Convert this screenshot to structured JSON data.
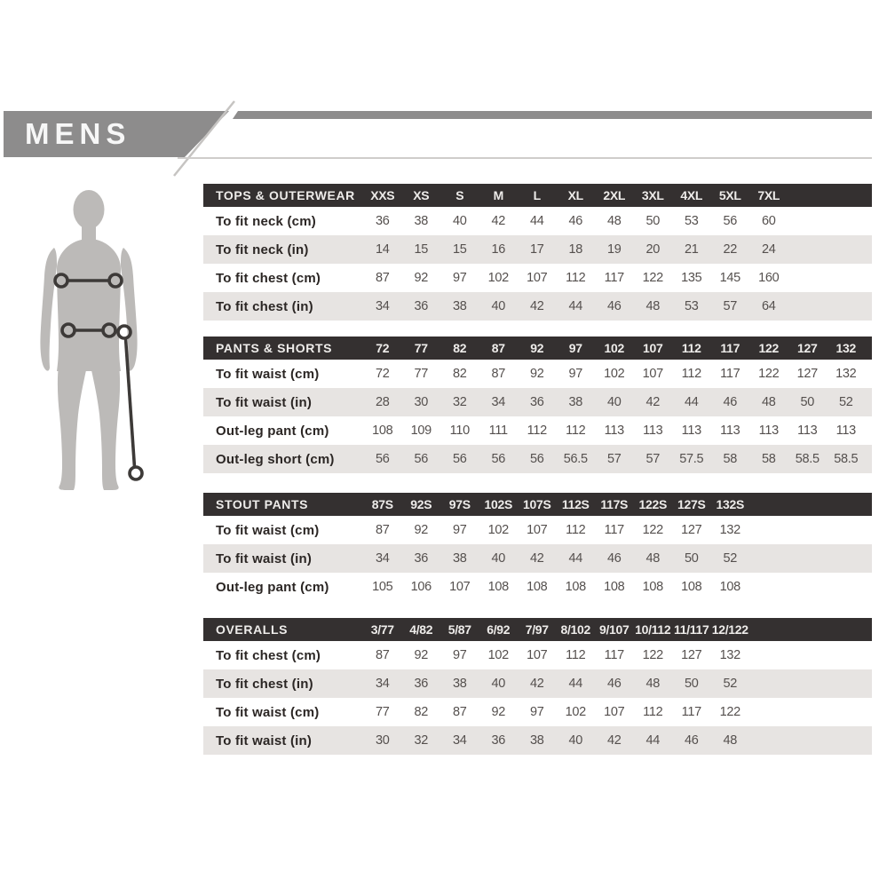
{
  "header": {
    "title": "MENS"
  },
  "figure": {
    "icon": "male-body-silhouette",
    "markers": [
      "chest-girth-marker",
      "waist-girth-marker",
      "outleg-length-marker"
    ]
  },
  "colors": {
    "banner_bg": "#8d8c8c",
    "banner_text": "#f7f7f7",
    "table_header_bg": "#343030",
    "table_header_text": "#eeecea",
    "row_band_bg": "#e7e4e2",
    "row_label_text": "#2b2624",
    "value_text": "#55504e",
    "silhouette_fill": "#bcbab8",
    "marker_stroke": "#3d3a38",
    "hairline": "#cfcdcb"
  },
  "tables": [
    {
      "id": "tops-outerwear",
      "title": "TOPS & OUTERWEAR",
      "columns": [
        "XXS",
        "XS",
        "S",
        "M",
        "L",
        "XL",
        "2XL",
        "3XL",
        "4XL",
        "5XL",
        "7XL"
      ],
      "rows": [
        {
          "label": "To fit neck (cm)",
          "values": [
            "36",
            "38",
            "40",
            "42",
            "44",
            "46",
            "48",
            "50",
            "53",
            "56",
            "60"
          ]
        },
        {
          "label": "To fit neck (in)",
          "values": [
            "14",
            "15",
            "15",
            "16",
            "17",
            "18",
            "19",
            "20",
            "21",
            "22",
            "24"
          ]
        },
        {
          "label": "To fit chest (cm)",
          "values": [
            "87",
            "92",
            "97",
            "102",
            "107",
            "112",
            "117",
            "122",
            "135",
            "145",
            "160"
          ]
        },
        {
          "label": "To fit chest (in)",
          "values": [
            "34",
            "36",
            "38",
            "40",
            "42",
            "44",
            "46",
            "48",
            "53",
            "57",
            "64"
          ]
        }
      ]
    },
    {
      "id": "pants-shorts",
      "title": "PANTS & SHORTS",
      "columns": [
        "72",
        "77",
        "82",
        "87",
        "92",
        "97",
        "102",
        "107",
        "112",
        "117",
        "122",
        "127",
        "132"
      ],
      "rows": [
        {
          "label": "To fit waist (cm)",
          "values": [
            "72",
            "77",
            "82",
            "87",
            "92",
            "97",
            "102",
            "107",
            "112",
            "117",
            "122",
            "127",
            "132"
          ]
        },
        {
          "label": "To fit waist (in)",
          "values": [
            "28",
            "30",
            "32",
            "34",
            "36",
            "38",
            "40",
            "42",
            "44",
            "46",
            "48",
            "50",
            "52"
          ]
        },
        {
          "label": "Out-leg pant (cm)",
          "values": [
            "108",
            "109",
            "110",
            "111",
            "112",
            "112",
            "113",
            "113",
            "113",
            "113",
            "113",
            "113",
            "113"
          ]
        },
        {
          "label": "Out-leg short (cm)",
          "values": [
            "56",
            "56",
            "56",
            "56",
            "56",
            "56.5",
            "57",
            "57",
            "57.5",
            "58",
            "58",
            "58.5",
            "58.5"
          ]
        }
      ]
    },
    {
      "id": "stout-pants",
      "title": "STOUT PANTS",
      "columns": [
        "87S",
        "92S",
        "97S",
        "102S",
        "107S",
        "112S",
        "117S",
        "122S",
        "127S",
        "132S"
      ],
      "rows": [
        {
          "label": "To fit waist (cm)",
          "values": [
            "87",
            "92",
            "97",
            "102",
            "107",
            "112",
            "117",
            "122",
            "127",
            "132"
          ]
        },
        {
          "label": "To fit waist (in)",
          "values": [
            "34",
            "36",
            "38",
            "40",
            "42",
            "44",
            "46",
            "48",
            "50",
            "52"
          ]
        },
        {
          "label": "Out-leg pant (cm)",
          "values": [
            "105",
            "106",
            "107",
            "108",
            "108",
            "108",
            "108",
            "108",
            "108",
            "108"
          ]
        }
      ]
    },
    {
      "id": "overalls",
      "title": "OVERALLS",
      "columns": [
        "3/77",
        "4/82",
        "5/87",
        "6/92",
        "7/97",
        "8/102",
        "9/107",
        "10/112",
        "11/117",
        "12/122"
      ],
      "rows": [
        {
          "label": "To fit chest (cm)",
          "values": [
            "87",
            "92",
            "97",
            "102",
            "107",
            "112",
            "117",
            "122",
            "127",
            "132"
          ]
        },
        {
          "label": "To fit chest (in)",
          "values": [
            "34",
            "36",
            "38",
            "40",
            "42",
            "44",
            "46",
            "48",
            "50",
            "52"
          ]
        },
        {
          "label": "To fit waist (cm)",
          "values": [
            "77",
            "82",
            "87",
            "92",
            "97",
            "102",
            "107",
            "112",
            "117",
            "122"
          ]
        },
        {
          "label": "To fit waist (in)",
          "values": [
            "30",
            "32",
            "34",
            "36",
            "38",
            "40",
            "42",
            "44",
            "46",
            "48"
          ]
        }
      ]
    }
  ]
}
